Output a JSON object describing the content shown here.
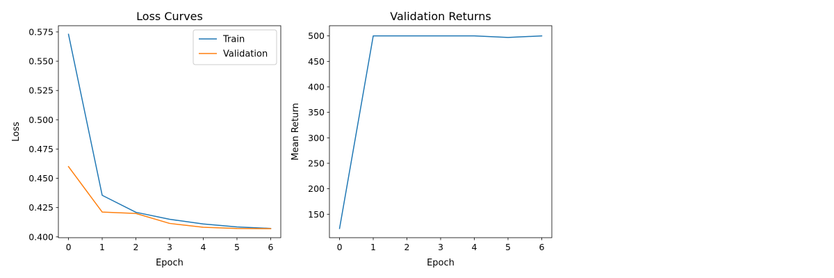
{
  "chart_data": [
    {
      "type": "line",
      "title": "Loss Curves",
      "xlabel": "Epoch",
      "ylabel": "Loss",
      "x": [
        0,
        1,
        2,
        3,
        4,
        5,
        6
      ],
      "xlim": [
        -0.3,
        6.3
      ],
      "ylim": [
        0.3993,
        0.5803
      ],
      "xticks": [
        0,
        1,
        2,
        3,
        4,
        5,
        6
      ],
      "yticks": [
        0.4,
        0.425,
        0.45,
        0.475,
        0.5,
        0.525,
        0.55,
        0.575
      ],
      "xtick_labels": [
        "0",
        "1",
        "2",
        "3",
        "4",
        "5",
        "6"
      ],
      "ytick_labels": [
        "0.400",
        "0.425",
        "0.450",
        "0.475",
        "0.500",
        "0.525",
        "0.550",
        "0.575"
      ],
      "grid": false,
      "legend_position": "top-right",
      "series": [
        {
          "name": "Train",
          "color": "#1f77b4",
          "values": [
            0.573,
            0.4355,
            0.421,
            0.415,
            0.411,
            0.4085,
            0.4072
          ]
        },
        {
          "name": "Validation",
          "color": "#ff7f0e",
          "values": [
            0.46,
            0.4212,
            0.42,
            0.4115,
            0.4082,
            0.4072,
            0.407
          ]
        }
      ]
    },
    {
      "type": "line",
      "title": "Validation Returns",
      "xlabel": "Epoch",
      "ylabel": "Mean Return",
      "x": [
        0,
        1,
        2,
        3,
        4,
        5,
        6
      ],
      "xlim": [
        -0.3,
        6.3
      ],
      "ylim": [
        104,
        520
      ],
      "xticks": [
        0,
        1,
        2,
        3,
        4,
        5,
        6
      ],
      "yticks": [
        150,
        200,
        250,
        300,
        350,
        400,
        450,
        500
      ],
      "xtick_labels": [
        "0",
        "1",
        "2",
        "3",
        "4",
        "5",
        "6"
      ],
      "ytick_labels": [
        "150",
        "200",
        "250",
        "300",
        "350",
        "400",
        "450",
        "500"
      ],
      "grid": false,
      "series": [
        {
          "color": "#1f77b4",
          "values": [
            122,
            500,
            500,
            500,
            500,
            497,
            500
          ]
        }
      ]
    }
  ]
}
